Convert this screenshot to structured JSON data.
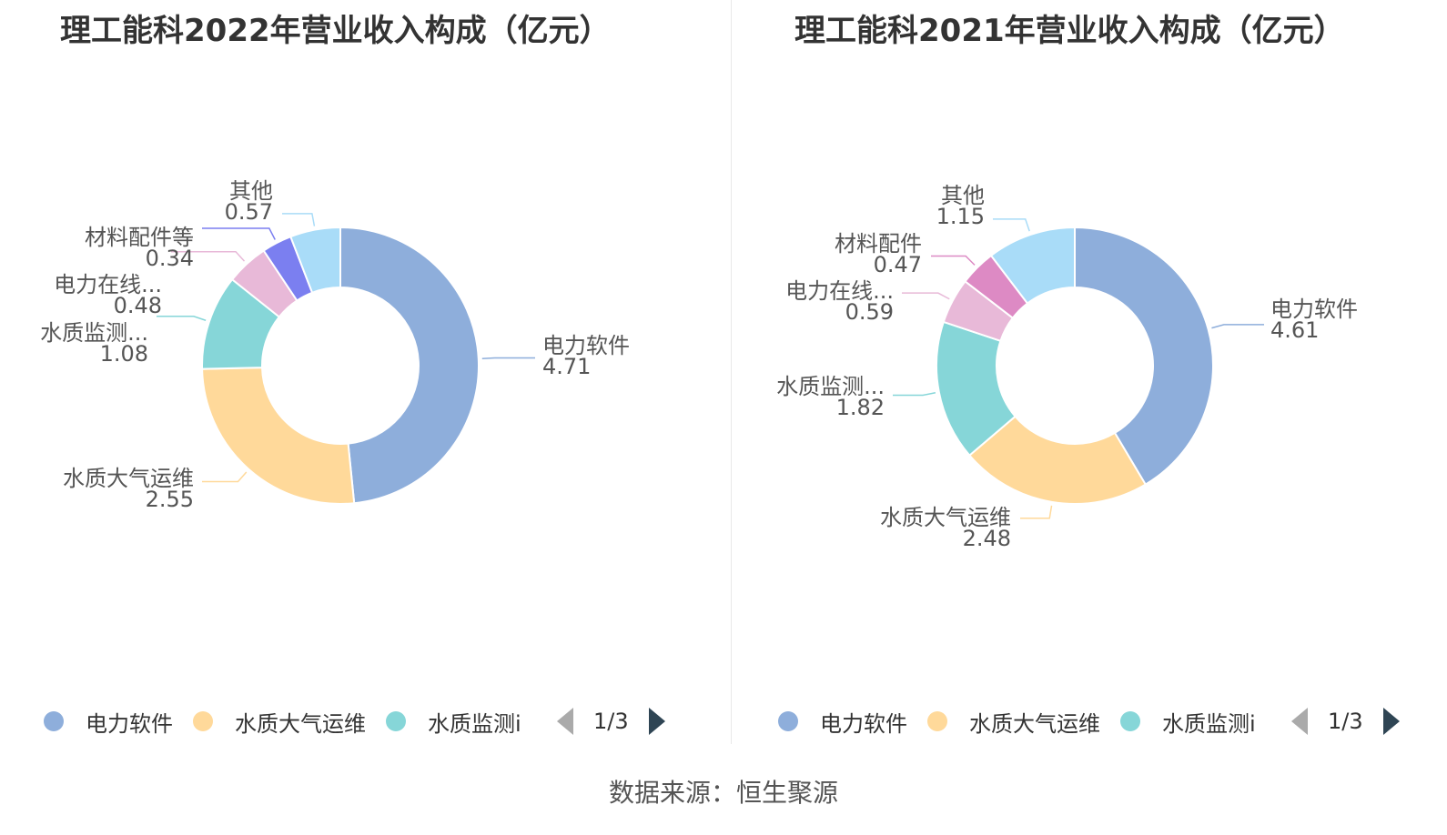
{
  "source_text": "数据来源：恒生聚源",
  "chart_data": [
    {
      "type": "pie",
      "title": "理工能科2022年营业收入构成（亿元）",
      "slices": [
        {
          "name": "电力软件",
          "label": "电力软件",
          "value": 4.71,
          "value_text": "4.71",
          "color": "#8eaedb"
        },
        {
          "name": "水质大气运维",
          "label": "水质大气运维",
          "value": 2.55,
          "value_text": "2.55",
          "color": "#ffd99a"
        },
        {
          "name": "水质监测",
          "label": "水质监测...",
          "value": 1.08,
          "value_text": "1.08",
          "color": "#86d6d8"
        },
        {
          "name": "电力在线",
          "label": "电力在线...",
          "value": 0.48,
          "value_text": "0.48",
          "color": "#e8b9d8"
        },
        {
          "name": "材料配件等",
          "label": "材料配件等",
          "value": 0.34,
          "value_text": "0.34",
          "color": "#7b7ff0"
        },
        {
          "name": "其他",
          "label": "其他",
          "value": 0.57,
          "value_text": "0.57",
          "color": "#a9dcf8"
        }
      ],
      "legend": {
        "items": [
          {
            "label": "电力软件",
            "color": "#8eaedb"
          },
          {
            "label": "水质大气运维",
            "color": "#ffd99a"
          },
          {
            "label": "水质监测i",
            "color": "#86d6d8"
          }
        ],
        "page_text": "1/3"
      }
    },
    {
      "type": "pie",
      "title": "理工能科2021年营业收入构成（亿元）",
      "slices": [
        {
          "name": "电力软件",
          "label": "电力软件",
          "value": 4.61,
          "value_text": "4.61",
          "color": "#8eaedb"
        },
        {
          "name": "水质大气运维",
          "label": "水质大气运维",
          "value": 2.48,
          "value_text": "2.48",
          "color": "#ffd99a"
        },
        {
          "name": "水质监测",
          "label": "水质监测...",
          "value": 1.82,
          "value_text": "1.82",
          "color": "#86d6d8"
        },
        {
          "name": "电力在线",
          "label": "电力在线...",
          "value": 0.59,
          "value_text": "0.59",
          "color": "#e8b9d8"
        },
        {
          "name": "材料配件",
          "label": "材料配件",
          "value": 0.47,
          "value_text": "0.47",
          "color": "#dd8ac4"
        },
        {
          "name": "其他",
          "label": "其他",
          "value": 1.15,
          "value_text": "1.15",
          "color": "#a9dcf8"
        }
      ],
      "legend": {
        "items": [
          {
            "label": "电力软件",
            "color": "#8eaedb"
          },
          {
            "label": "水质大气运维",
            "color": "#ffd99a"
          },
          {
            "label": "水质监测i",
            "color": "#86d6d8"
          }
        ],
        "page_text": "1/3"
      }
    }
  ]
}
